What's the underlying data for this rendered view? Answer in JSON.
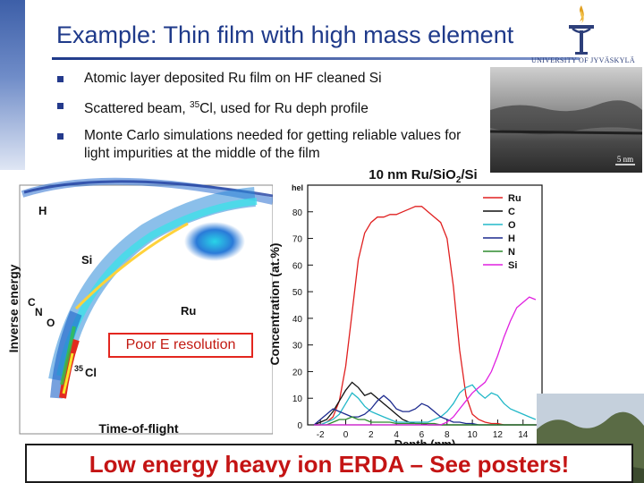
{
  "slide": {
    "title": "Example: Thin film with high mass element",
    "university_text": "UNIVERSITY OF JYVÄSKYLÄ"
  },
  "bullets": [
    {
      "text": "Atomic layer deposited Ru film on HF cleaned Si"
    },
    {
      "text_before": "Scattered beam, ",
      "superscript": "35",
      "text_after": "Cl, used for Ru deph profile"
    },
    {
      "text": "Monte Carlo simulations needed  for getting reliable values for light impurities at the middle of the film"
    }
  ],
  "tem_image": {
    "scale_label": "5 nm"
  },
  "scatter_plot": {
    "xlabel": "Time-of-flight",
    "ylabel": "Inverse energy",
    "labels": [
      {
        "text": "H"
      },
      {
        "text": "Si"
      },
      {
        "text": "Ru"
      },
      {
        "text": "C"
      },
      {
        "text": "N"
      },
      {
        "text": "O"
      },
      {
        "text": "Cl",
        "superscript": "35"
      }
    ]
  },
  "annotation": {
    "text": "Poor E resolution"
  },
  "banner": {
    "text": "Low energy heavy ion ERDA – See posters!"
  },
  "chart_data": {
    "type": "line",
    "title": "10 nm Ru/SiO2/Si",
    "xlabel": "Depth (nm)",
    "ylabel": "Concentration (at.%)",
    "y_unit_label": "hel",
    "xlim": [
      -3,
      15.5
    ],
    "ylim": [
      0,
      90
    ],
    "xticks": [
      -2,
      0,
      2,
      4,
      6,
      8,
      10,
      12,
      14
    ],
    "yticks": [
      0,
      10,
      20,
      30,
      40,
      50,
      60,
      70,
      80
    ],
    "legend_position": "top-right",
    "series": [
      {
        "name": "Ru",
        "color": "#e02020",
        "x": [
          -2.5,
          -2,
          -1.5,
          -1,
          -0.5,
          0,
          0.5,
          1,
          1.5,
          2,
          2.5,
          3,
          3.5,
          4,
          4.5,
          5,
          5.5,
          6,
          6.5,
          7,
          7.5,
          8,
          8.5,
          9,
          9.5,
          10,
          10.5,
          11,
          11.5,
          12,
          12.5,
          13,
          13.5,
          14,
          14.5,
          15
        ],
        "y": [
          0,
          0,
          1,
          3,
          9,
          22,
          42,
          62,
          72,
          76,
          78,
          78,
          79,
          79,
          80,
          81,
          82,
          82,
          80,
          78,
          76,
          70,
          52,
          28,
          11,
          4,
          2,
          1,
          0.5,
          0.5,
          0,
          0,
          0,
          0,
          0,
          0
        ]
      },
      {
        "name": "C",
        "color": "#111111",
        "x": [
          -2.5,
          -2,
          -1.5,
          -1,
          -0.5,
          0,
          0.5,
          1,
          1.5,
          2,
          2.5,
          3,
          3.5,
          4,
          4.5,
          5,
          5.5,
          6,
          6.5,
          7,
          7.5,
          8,
          8.5,
          9,
          9.5,
          10,
          10.5,
          11,
          11.5,
          12,
          12.5,
          13,
          13.5,
          14,
          14.5,
          15
        ],
        "y": [
          0,
          1,
          2,
          5,
          9,
          13,
          16,
          14,
          11,
          12,
          10,
          8,
          6,
          4,
          2,
          1,
          0.5,
          0.5,
          0,
          0,
          0,
          0,
          0,
          0,
          0,
          0,
          0,
          0,
          0,
          0,
          0,
          0,
          0,
          0,
          0,
          0
        ]
      },
      {
        "name": "O",
        "color": "#22b8c8",
        "x": [
          -2.5,
          -2,
          -1.5,
          -1,
          -0.5,
          0,
          0.5,
          1,
          1.5,
          2,
          2.5,
          3,
          3.5,
          4,
          4.5,
          5,
          5.5,
          6,
          6.5,
          7,
          7.5,
          8,
          8.5,
          9,
          9.5,
          10,
          10.5,
          11,
          11.5,
          12,
          12.5,
          13,
          13.5,
          14,
          14.5,
          15
        ],
        "y": [
          0,
          0,
          1,
          2,
          4,
          8,
          12,
          10,
          7,
          5,
          4,
          3,
          2,
          1,
          1,
          1,
          1,
          1,
          1,
          2,
          3,
          5,
          8,
          12,
          14,
          15,
          12,
          10,
          12,
          11,
          8,
          6,
          5,
          4,
          3,
          2
        ]
      },
      {
        "name": "H",
        "color": "#1c2a8e",
        "x": [
          -2.5,
          -2,
          -1.5,
          -1,
          -0.5,
          0,
          0.5,
          1,
          1.5,
          2,
          2.5,
          3,
          3.5,
          4,
          4.5,
          5,
          5.5,
          6,
          6.5,
          7,
          7.5,
          8,
          8.5,
          9,
          9.5,
          10,
          10.5,
          11,
          11.5,
          12,
          12.5,
          13,
          13.5,
          14,
          14.5,
          15
        ],
        "y": [
          0,
          2,
          4,
          6,
          5,
          4,
          3,
          3,
          4,
          6,
          9,
          11,
          9,
          6,
          5,
          5,
          6,
          8,
          7,
          5,
          3,
          2,
          1,
          1,
          0.5,
          0.5,
          0,
          0,
          0,
          0,
          0,
          0,
          0,
          0,
          0,
          0
        ]
      },
      {
        "name": "N",
        "color": "#2e8b2e",
        "x": [
          -2.5,
          -2,
          -1.5,
          -1,
          -0.5,
          0,
          0.5,
          1,
          1.5,
          2,
          2.5,
          3,
          3.5,
          4,
          4.5,
          5,
          5.5,
          6,
          6.5,
          7,
          7.5,
          8,
          8.5,
          9,
          9.5,
          10,
          10.5,
          11,
          11.5,
          12,
          12.5,
          13,
          13.5,
          14,
          14.5,
          15
        ],
        "y": [
          0,
          0,
          0,
          1,
          2,
          2,
          3,
          2,
          2,
          1,
          1,
          1,
          1,
          0.5,
          0.5,
          0.5,
          0.5,
          0.5,
          0.5,
          0.5,
          0,
          0,
          0,
          0,
          0,
          0,
          0,
          0,
          0,
          0,
          0,
          0,
          0,
          0,
          0,
          0
        ]
      },
      {
        "name": "Si",
        "color": "#e020e0",
        "x": [
          -2.5,
          -2,
          -1.5,
          -1,
          -0.5,
          0,
          0.5,
          1,
          1.5,
          2,
          2.5,
          3,
          3.5,
          4,
          4.5,
          5,
          5.5,
          6,
          6.5,
          7,
          7.5,
          8,
          8.5,
          9,
          9.5,
          10,
          10.5,
          11,
          11.5,
          12,
          12.5,
          13,
          13.5,
          14,
          14.5,
          15
        ],
        "y": [
          0,
          0,
          0,
          0,
          0,
          0,
          0,
          0,
          0,
          0,
          0,
          0,
          0,
          0,
          0,
          0,
          0,
          0,
          0,
          0,
          0,
          1,
          3,
          6,
          9,
          12,
          14,
          16,
          20,
          26,
          33,
          39,
          44,
          46,
          48,
          47
        ]
      }
    ]
  },
  "colors": {
    "title": "#1f3a8a",
    "bullet_square": "#243a8c",
    "banner_text": "#c41414",
    "annotation_border": "#e3261f"
  }
}
